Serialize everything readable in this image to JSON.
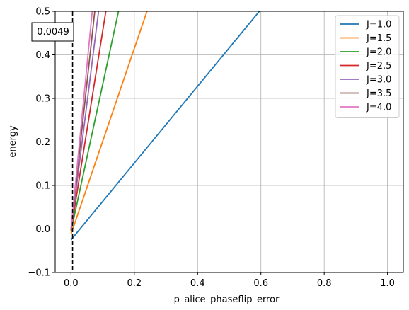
{
  "chart_data": {
    "type": "line",
    "title": "",
    "xlabel": "p_alice_phaseflip_error",
    "ylabel": "energy",
    "xlim": [
      -0.05,
      1.05
    ],
    "ylim": [
      -0.1,
      0.5
    ],
    "xticks": [
      0.0,
      0.2,
      0.4,
      0.6,
      0.8,
      1.0
    ],
    "xtick_labels": [
      "0.0",
      "0.2",
      "0.4",
      "0.6",
      "0.8",
      "1.0"
    ],
    "yticks": [
      -0.1,
      0.0,
      0.1,
      0.2,
      0.3,
      0.4,
      0.5
    ],
    "ytick_labels": [
      "−0.1",
      "0.0",
      "0.1",
      "0.2",
      "0.3",
      "0.4",
      "0.5"
    ],
    "grid": true,
    "legend_position": "top-right",
    "series": [
      {
        "name": "J=1.0",
        "color": "#1f77b4",
        "x": [
          0.0,
          0.595
        ],
        "y": [
          -0.025,
          0.5
        ]
      },
      {
        "name": "J=1.5",
        "color": "#ff7f0e",
        "x": [
          0.0,
          0.24
        ],
        "y": [
          -0.012,
          0.5
        ]
      },
      {
        "name": "J=2.0",
        "color": "#2ca02c",
        "x": [
          0.0,
          0.15
        ],
        "y": [
          -0.005,
          0.5
        ]
      },
      {
        "name": "J=2.5",
        "color": "#d62728",
        "x": [
          0.0,
          0.11
        ],
        "y": [
          -0.003,
          0.5
        ]
      },
      {
        "name": "J=3.0",
        "color": "#9467bd",
        "x": [
          0.0,
          0.087
        ],
        "y": [
          -0.002,
          0.5
        ]
      },
      {
        "name": "J=3.5",
        "color": "#8c564b",
        "x": [
          0.0,
          0.075
        ],
        "y": [
          -0.001,
          0.5
        ]
      },
      {
        "name": "J=4.0",
        "color": "#e377c2",
        "x": [
          0.0,
          0.067
        ],
        "y": [
          -0.001,
          0.5
        ]
      }
    ],
    "vline": {
      "x": 0.0049,
      "style": "dashed",
      "color": "#000000"
    },
    "annotation": {
      "text": "0.0049",
      "x": 0.0049,
      "y": 0.455
    }
  }
}
